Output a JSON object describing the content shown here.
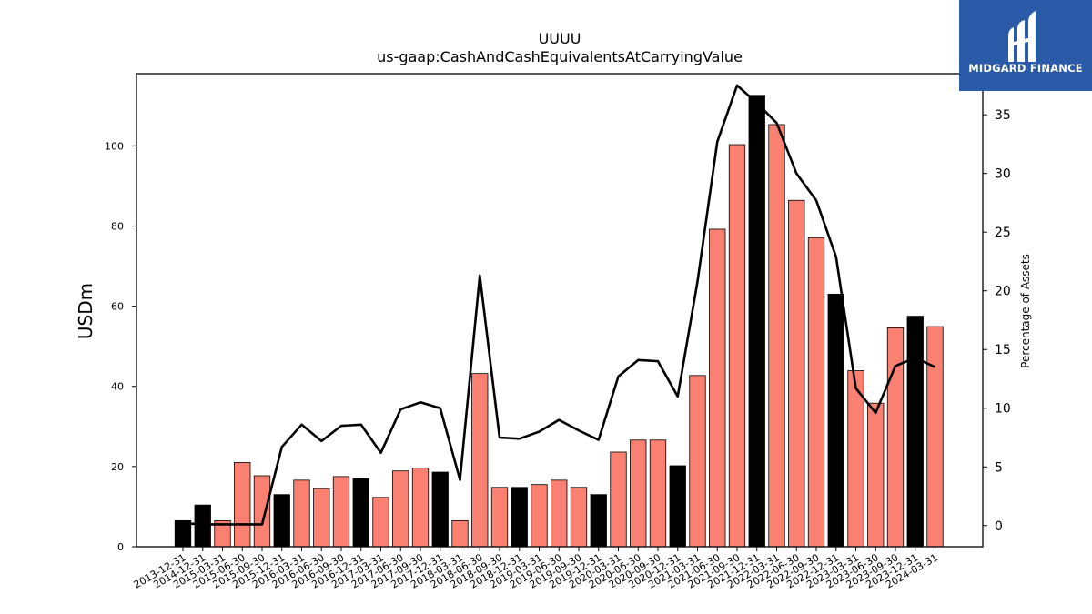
{
  "logo": {
    "text": "MIDGARD FINANCE",
    "icon": "midgard-finance-logo-icon",
    "color": "#2a5aa8"
  },
  "chart_data": {
    "type": "bar",
    "title": "UUUU",
    "subtitle": "us-gaap:CashAndCashEquivalentsAtCarryingValue",
    "ylabel": "USDm",
    "y2label": "Percentage of Assets",
    "ylim": [
      0,
      118
    ],
    "y2lim": [
      -1.8,
      38.5
    ],
    "yticks": [
      0,
      20,
      40,
      60,
      80,
      100
    ],
    "y2ticks": [
      0,
      5,
      10,
      15,
      20,
      25,
      30,
      35
    ],
    "categories": [
      "2013-12-31",
      "2014-12-31",
      "2015-03-31",
      "2015-06-30",
      "2015-09-30",
      "2015-12-31",
      "2016-03-31",
      "2016-06-30",
      "2016-09-30",
      "2016-12-31",
      "2017-03-31",
      "2017-06-30",
      "2017-09-30",
      "2017-12-31",
      "2018-03-31",
      "2018-06-30",
      "2018-09-30",
      "2018-12-31",
      "2019-03-31",
      "2019-06-30",
      "2019-09-30",
      "2019-12-31",
      "2020-03-31",
      "2020-06-30",
      "2020-09-30",
      "2020-12-31",
      "2021-03-31",
      "2021-06-30",
      "2021-09-30",
      "2021-12-31",
      "2022-03-31",
      "2022-06-30",
      "2022-09-30",
      "2022-12-31",
      "2023-03-31",
      "2023-06-30",
      "2023-09-30",
      "2023-12-31",
      "2024-03-31"
    ],
    "series": [
      {
        "type": "bar",
        "values": [
          6.5,
          10.4,
          6.5,
          21,
          17.7,
          13,
          16.6,
          14.5,
          17.5,
          17,
          12.3,
          18.9,
          19.6,
          18.6,
          6.5,
          43.2,
          14.8,
          14.8,
          15.5,
          16.6,
          14.8,
          13,
          23.6,
          26.6,
          26.6,
          20.2,
          42.7,
          79.2,
          100.3,
          112.6,
          105.3,
          86.4,
          77.1,
          63,
          43.9,
          35.8,
          54.6,
          57.5,
          54.9
        ]
      },
      {
        "type": "line",
        "axis": "secondary",
        "values": [
          0.2,
          0.1,
          0.1,
          0.1,
          0.1,
          6.7,
          8.6,
          7.2,
          8.5,
          8.6,
          6.2,
          9.9,
          10.5,
          10,
          3.9,
          21.3,
          7.5,
          7.4,
          8,
          9,
          8.1,
          7.3,
          12.7,
          14.1,
          14,
          11,
          20.8,
          32.7,
          37.5,
          36,
          34.3,
          30,
          27.7,
          22.9,
          11.7,
          9.6,
          13.6,
          14.3,
          13.5
        ]
      }
    ],
    "bar_colors": {
      "annual": "#000000",
      "quarterly": "#fa8072"
    },
    "annual_flags": [
      1,
      1,
      0,
      0,
      0,
      1,
      0,
      0,
      0,
      1,
      0,
      0,
      0,
      1,
      0,
      0,
      0,
      1,
      0,
      0,
      0,
      1,
      0,
      0,
      0,
      1,
      0,
      0,
      0,
      1,
      0,
      0,
      0,
      1,
      0,
      0,
      0,
      1,
      0
    ],
    "line_color": "#000000",
    "grid": false
  }
}
